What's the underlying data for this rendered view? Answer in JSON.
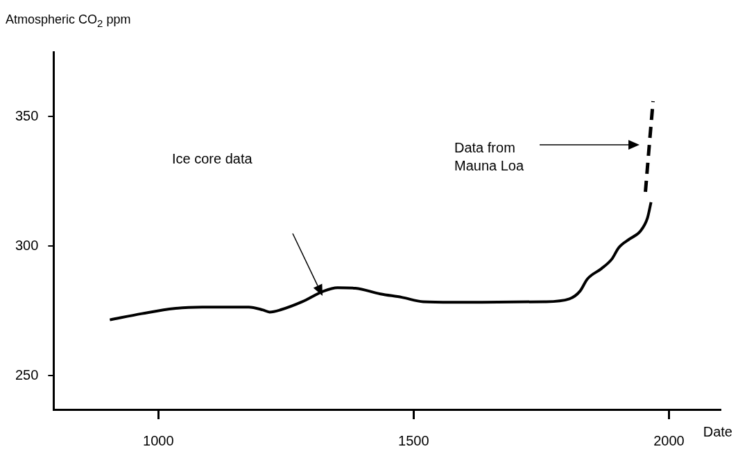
{
  "chart_data": {
    "type": "line",
    "xlabel": "Date",
    "ylabel": "Atmospheric CO$_{2}$ ppm",
    "xlim": [
      795,
      2100
    ],
    "ylim": [
      237,
      375
    ],
    "xticks": [
      1000,
      1500,
      2000
    ],
    "yticks": [
      250,
      300,
      350
    ],
    "grid": false,
    "legend": false,
    "marker": "none",
    "series": [
      {
        "color": "#000000",
        "line_style": "solid",
        "x": [
          905,
          968,
          1031,
          1086,
          1177,
          1205,
          1218,
          1240,
          1282,
          1324,
          1351,
          1386,
          1435,
          1477,
          1519,
          1575,
          1756,
          1805,
          1826,
          1840,
          1868,
          1888,
          1902,
          1923,
          1944,
          1958,
          1965
        ],
        "values": [
          271.6,
          274,
          276,
          276.5,
          276.5,
          275.4,
          274.6,
          275.5,
          278.6,
          282.7,
          284,
          283.8,
          281.6,
          280.3,
          278.6,
          278.4,
          278.6,
          279.7,
          282.7,
          287.3,
          291.4,
          295,
          299.5,
          302.8,
          305.8,
          310.9,
          317
        ]
      },
      {
        "color": "#000000",
        "line_style": "dashed",
        "x": [
          1954,
          1962,
          1969
        ],
        "values": [
          321,
          340,
          356
        ]
      }
    ],
    "annotations": [
      "Ice core data",
      "Data from\nMauna Loa"
    ]
  }
}
